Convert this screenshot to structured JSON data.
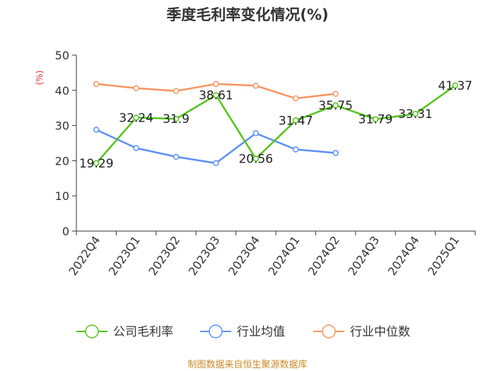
{
  "chart_data": {
    "type": "line",
    "title": "季度毛利率变化情况(%)",
    "ylabel": "(%)",
    "ylim": [
      0,
      50
    ],
    "yticks": [
      0,
      10,
      20,
      30,
      40,
      50
    ],
    "categories": [
      "2022Q4",
      "2023Q1",
      "2023Q2",
      "2023Q3",
      "2023Q4",
      "2024Q1",
      "2024Q2",
      "2024Q3",
      "2024Q4",
      "2025Q1"
    ],
    "series": [
      {
        "name": "公司毛利率",
        "color": "#52c41a",
        "values": [
          19.29,
          32.24,
          31.9,
          38.61,
          20.56,
          31.47,
          35.75,
          31.79,
          33.31,
          41.37
        ],
        "labels": [
          "19.29",
          "32.24",
          "31.9",
          "38.61",
          "20.56",
          "31.47",
          "35.75",
          "31.79",
          "33.31",
          "41.37"
        ]
      },
      {
        "name": "行业均值",
        "color": "#5b8ff9",
        "values": [
          28.8,
          23.6,
          21.1,
          19.3,
          27.8,
          23.2,
          22.2,
          null,
          null,
          null
        ]
      },
      {
        "name": "行业中位数",
        "color": "#f6955e",
        "values": [
          41.8,
          40.6,
          39.8,
          41.8,
          41.3,
          37.7,
          39.0,
          null,
          null,
          null
        ]
      }
    ],
    "legend_position": "bottom",
    "grid": false,
    "source": "制图数据来自恒生聚源数据库"
  }
}
